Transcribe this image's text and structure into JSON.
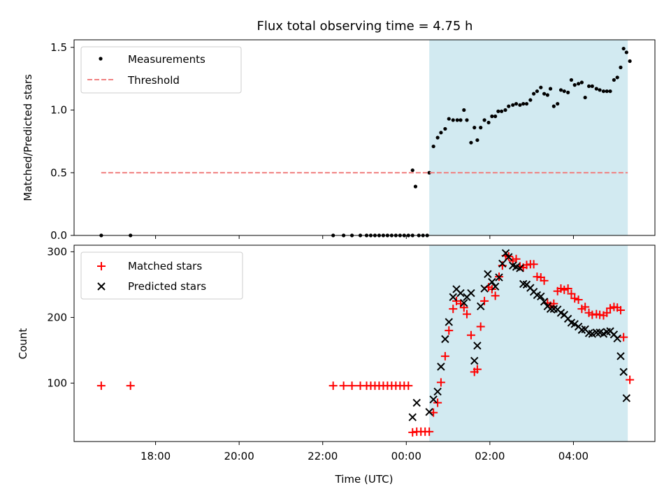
{
  "title": "Flux total observing time = 4.75 h",
  "colors": {
    "shade": "#add8e6",
    "threshold": "#f08080",
    "measurements": "#000000",
    "matched": "#ff0000",
    "predicted": "#000000"
  },
  "chart_data": [
    {
      "type": "scatter",
      "ylabel": "Matched/Predicted stars",
      "xlim": [
        16.05,
        29.95
      ],
      "ylim": [
        0,
        1.56
      ],
      "yticks": [
        0.0,
        0.5,
        1.0,
        1.5
      ],
      "ytick_labels": [
        "0.0",
        "0.5",
        "1.0",
        "1.5"
      ],
      "shaded_region": {
        "x": [
          24.55,
          29.3
        ]
      },
      "legend": {
        "position": "top-left",
        "entries": [
          "Measurements",
          "Threshold"
        ]
      },
      "series": [
        {
          "name": "Measurements",
          "marker": "dot",
          "points": [
            [
              16.7,
              0
            ],
            [
              17.4,
              0
            ],
            [
              22.25,
              0
            ],
            [
              22.5,
              0
            ],
            [
              22.7,
              0
            ],
            [
              22.9,
              0
            ],
            [
              23.05,
              0
            ],
            [
              23.15,
              0
            ],
            [
              23.25,
              0
            ],
            [
              23.35,
              0
            ],
            [
              23.45,
              0
            ],
            [
              23.55,
              0
            ],
            [
              23.65,
              0
            ],
            [
              23.75,
              0
            ],
            [
              23.85,
              0
            ],
            [
              23.95,
              0
            ],
            [
              24.05,
              0
            ],
            [
              24.15,
              0
            ],
            [
              24.3,
              0
            ],
            [
              24.4,
              0
            ],
            [
              24.5,
              0
            ],
            [
              24.15,
              0.52
            ],
            [
              24.22,
              0.39
            ],
            [
              24.55,
              0.5
            ],
            [
              24.65,
              0.71
            ],
            [
              24.75,
              0.78
            ],
            [
              24.83,
              0.82
            ],
            [
              24.93,
              0.85
            ],
            [
              25.02,
              0.93
            ],
            [
              25.12,
              0.92
            ],
            [
              25.22,
              0.92
            ],
            [
              25.3,
              0.92
            ],
            [
              25.38,
              1.0
            ],
            [
              25.45,
              0.92
            ],
            [
              25.55,
              0.74
            ],
            [
              25.63,
              0.86
            ],
            [
              25.7,
              0.76
            ],
            [
              25.78,
              0.86
            ],
            [
              25.87,
              0.92
            ],
            [
              25.97,
              0.9
            ],
            [
              26.05,
              0.95
            ],
            [
              26.13,
              0.95
            ],
            [
              26.2,
              0.99
            ],
            [
              26.28,
              0.99
            ],
            [
              26.37,
              1.0
            ],
            [
              26.45,
              1.03
            ],
            [
              26.55,
              1.04
            ],
            [
              26.63,
              1.05
            ],
            [
              26.72,
              1.04
            ],
            [
              26.8,
              1.05
            ],
            [
              26.88,
              1.05
            ],
            [
              26.97,
              1.08
            ],
            [
              27.05,
              1.13
            ],
            [
              27.13,
              1.15
            ],
            [
              27.22,
              1.18
            ],
            [
              27.3,
              1.13
            ],
            [
              27.38,
              1.12
            ],
            [
              27.45,
              1.17
            ],
            [
              27.53,
              1.03
            ],
            [
              27.62,
              1.05
            ],
            [
              27.7,
              1.16
            ],
            [
              27.78,
              1.15
            ],
            [
              27.87,
              1.14
            ],
            [
              27.95,
              1.24
            ],
            [
              28.03,
              1.2
            ],
            [
              28.12,
              1.21
            ],
            [
              28.2,
              1.22
            ],
            [
              28.28,
              1.1
            ],
            [
              28.37,
              1.19
            ],
            [
              28.45,
              1.19
            ],
            [
              28.55,
              1.17
            ],
            [
              28.63,
              1.16
            ],
            [
              28.72,
              1.15
            ],
            [
              28.8,
              1.15
            ],
            [
              28.88,
              1.15
            ],
            [
              28.97,
              1.24
            ],
            [
              29.05,
              1.26
            ],
            [
              29.13,
              1.34
            ],
            [
              29.2,
              1.49
            ],
            [
              29.27,
              1.46
            ],
            [
              29.35,
              1.39
            ]
          ]
        },
        {
          "name": "Threshold",
          "marker": "dashed-line",
          "points": [
            [
              16.7,
              0.5
            ],
            [
              29.3,
              0.5
            ]
          ]
        }
      ]
    },
    {
      "type": "scatter",
      "xlabel": "Time (UTC)",
      "ylabel": "Count",
      "xlim": [
        16.05,
        29.95
      ],
      "ylim": [
        11,
        310
      ],
      "yticks": [
        100,
        200,
        300
      ],
      "ytick_labels": [
        "100",
        "200",
        "300"
      ],
      "xticks": [
        18,
        20,
        22,
        24,
        26,
        28
      ],
      "xtick_labels": [
        "18:00",
        "20:00",
        "22:00",
        "00:00",
        "02:00",
        "04:00"
      ],
      "shaded_region": {
        "x": [
          24.55,
          29.3
        ]
      },
      "legend": {
        "position": "top-left",
        "entries": [
          "Matched stars",
          "Predicted stars"
        ]
      },
      "series": [
        {
          "name": "Matched stars",
          "marker": "plus",
          "points": [
            [
              16.7,
              96
            ],
            [
              17.4,
              96
            ],
            [
              22.25,
              96
            ],
            [
              22.5,
              96
            ],
            [
              22.7,
              96
            ],
            [
              22.9,
              96
            ],
            [
              23.05,
              96
            ],
            [
              23.15,
              96
            ],
            [
              23.25,
              96
            ],
            [
              23.35,
              96
            ],
            [
              23.45,
              96
            ],
            [
              23.55,
              96
            ],
            [
              23.65,
              96
            ],
            [
              23.75,
              96
            ],
            [
              23.85,
              96
            ],
            [
              23.95,
              96
            ],
            [
              24.05,
              96
            ],
            [
              24.15,
              25
            ],
            [
              24.25,
              26
            ],
            [
              24.35,
              26
            ],
            [
              24.45,
              26
            ],
            [
              24.55,
              26
            ],
            [
              24.65,
              55
            ],
            [
              24.75,
              70
            ],
            [
              24.83,
              101
            ],
            [
              24.93,
              141
            ],
            [
              25.02,
              180
            ],
            [
              25.12,
              213
            ],
            [
              25.2,
              225
            ],
            [
              25.3,
              221
            ],
            [
              25.38,
              215
            ],
            [
              25.45,
              205
            ],
            [
              25.55,
              173
            ],
            [
              25.63,
              117
            ],
            [
              25.7,
              121
            ],
            [
              25.78,
              186
            ],
            [
              25.87,
              225
            ],
            [
              25.97,
              246
            ],
            [
              26.05,
              243
            ],
            [
              26.13,
              233
            ],
            [
              26.22,
              262
            ],
            [
              26.3,
              279
            ],
            [
              26.38,
              294
            ],
            [
              26.45,
              293
            ],
            [
              26.55,
              286
            ],
            [
              26.63,
              289
            ],
            [
              26.72,
              278
            ],
            [
              26.8,
              276
            ],
            [
              26.88,
              280
            ],
            [
              26.97,
              281
            ],
            [
              27.05,
              281
            ],
            [
              27.13,
              262
            ],
            [
              27.22,
              261
            ],
            [
              27.3,
              256
            ],
            [
              27.38,
              222
            ],
            [
              27.45,
              218
            ],
            [
              27.53,
              221
            ],
            [
              27.62,
              240
            ],
            [
              27.7,
              244
            ],
            [
              27.78,
              242
            ],
            [
              27.87,
              244
            ],
            [
              27.95,
              236
            ],
            [
              28.03,
              229
            ],
            [
              28.12,
              227
            ],
            [
              28.2,
              213
            ],
            [
              28.28,
              216
            ],
            [
              28.37,
              207
            ],
            [
              28.45,
              204
            ],
            [
              28.55,
              205
            ],
            [
              28.63,
              204
            ],
            [
              28.72,
              203
            ],
            [
              28.8,
              207
            ],
            [
              28.88,
              214
            ],
            [
              28.97,
              216
            ],
            [
              29.05,
              215
            ],
            [
              29.13,
              211
            ],
            [
              29.2,
              170
            ],
            [
              29.35,
              105
            ]
          ]
        },
        {
          "name": "Predicted stars",
          "marker": "x",
          "points": [
            [
              24.15,
              48
            ],
            [
              24.25,
              70
            ],
            [
              24.55,
              56
            ],
            [
              24.65,
              75
            ],
            [
              24.75,
              87
            ],
            [
              24.83,
              125
            ],
            [
              24.93,
              167
            ],
            [
              25.02,
              193
            ],
            [
              25.12,
              231
            ],
            [
              25.2,
              243
            ],
            [
              25.3,
              237
            ],
            [
              25.38,
              222
            ],
            [
              25.45,
              231
            ],
            [
              25.55,
              237
            ],
            [
              25.63,
              134
            ],
            [
              25.7,
              157
            ],
            [
              25.78,
              217
            ],
            [
              25.87,
              244
            ],
            [
              25.95,
              266
            ],
            [
              26.05,
              254
            ],
            [
              26.13,
              247
            ],
            [
              26.22,
              261
            ],
            [
              26.3,
              282
            ],
            [
              26.38,
              298
            ],
            [
              26.45,
              292
            ],
            [
              26.55,
              279
            ],
            [
              26.63,
              277
            ],
            [
              26.72,
              275
            ],
            [
              26.8,
              251
            ],
            [
              26.88,
              250
            ],
            [
              26.97,
              245
            ],
            [
              27.05,
              239
            ],
            [
              27.13,
              234
            ],
            [
              27.22,
              232
            ],
            [
              27.3,
              224
            ],
            [
              27.38,
              217
            ],
            [
              27.45,
              213
            ],
            [
              27.53,
              213
            ],
            [
              27.62,
              212
            ],
            [
              27.7,
              207
            ],
            [
              27.78,
              204
            ],
            [
              27.87,
              198
            ],
            [
              27.95,
              192
            ],
            [
              28.03,
              190
            ],
            [
              28.12,
              186
            ],
            [
              28.2,
              181
            ],
            [
              28.28,
              182
            ],
            [
              28.37,
              176
            ],
            [
              28.45,
              175
            ],
            [
              28.55,
              177
            ],
            [
              28.63,
              177
            ],
            [
              28.72,
              175
            ],
            [
              28.8,
              178
            ],
            [
              28.88,
              179
            ],
            [
              28.97,
              174
            ],
            [
              29.05,
              168
            ],
            [
              29.13,
              141
            ],
            [
              29.2,
              117
            ],
            [
              29.27,
              77
            ]
          ]
        }
      ]
    }
  ]
}
